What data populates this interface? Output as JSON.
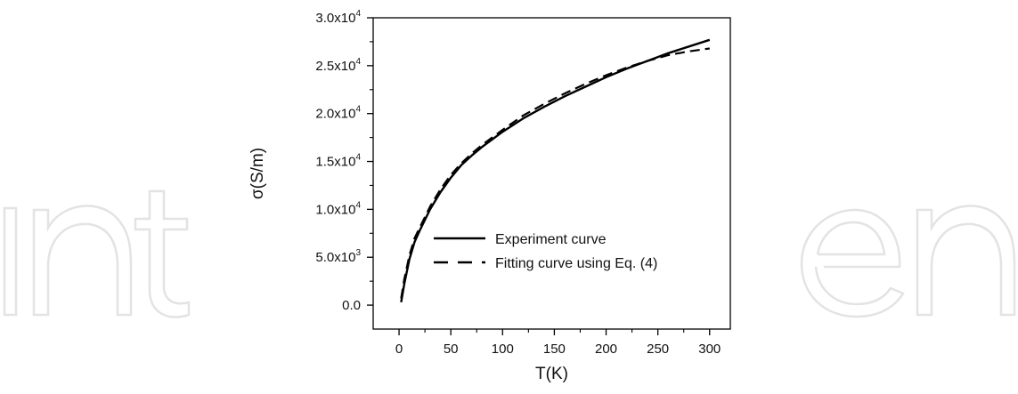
{
  "watermark": {
    "text": "IntechOpen",
    "color": "#e3e3e3"
  },
  "chart_data": {
    "type": "line",
    "title": "",
    "xlabel": "T(K)",
    "ylabel": "σ(S/m)",
    "xlim": [
      -25,
      320
    ],
    "ylim": [
      -2500,
      30000
    ],
    "x_ticks": [
      0,
      50,
      100,
      150,
      200,
      250,
      300
    ],
    "x_tick_labels": [
      "0",
      "50",
      "100",
      "150",
      "200",
      "250",
      "300"
    ],
    "y_ticks": [
      0,
      5000,
      10000,
      15000,
      20000,
      25000,
      30000
    ],
    "y_tick_labels": [
      {
        "mantissa": "0.0",
        "exp": ""
      },
      {
        "mantissa": "5.0x10",
        "exp": "3"
      },
      {
        "mantissa": "1.0x10",
        "exp": "4"
      },
      {
        "mantissa": "1.5x10",
        "exp": "4"
      },
      {
        "mantissa": "2.0x10",
        "exp": "4"
      },
      {
        "mantissa": "2.5x10",
        "exp": "4"
      },
      {
        "mantissa": "3.0x10",
        "exp": "4"
      }
    ],
    "grid": false,
    "legend_position": "lower-center",
    "series": [
      {
        "name": "Experiment curve",
        "style": "solid",
        "color": "#000000",
        "x": [
          2,
          5,
          10,
          15,
          20,
          30,
          40,
          50,
          60,
          70,
          80,
          100,
          120,
          140,
          160,
          180,
          200,
          220,
          240,
          260,
          280,
          300
        ],
        "y": [
          300,
          2200,
          4800,
          6600,
          7800,
          10000,
          11800,
          13300,
          14600,
          15600,
          16500,
          18100,
          19500,
          20700,
          21800,
          22800,
          23800,
          24700,
          25500,
          26300,
          27000,
          27700
        ]
      },
      {
        "name": "Fitting curve using Eq. (4)",
        "style": "dashed",
        "color": "#000000",
        "x": [
          2,
          5,
          10,
          15,
          20,
          30,
          40,
          50,
          60,
          70,
          80,
          100,
          120,
          140,
          160,
          180,
          200,
          220,
          240,
          260,
          280,
          300
        ],
        "y": [
          700,
          2700,
          5200,
          7000,
          8100,
          10300,
          12100,
          13600,
          14800,
          15800,
          16700,
          18300,
          19800,
          21000,
          22100,
          23100,
          24000,
          24800,
          25500,
          26100,
          26500,
          26800
        ]
      }
    ]
  }
}
